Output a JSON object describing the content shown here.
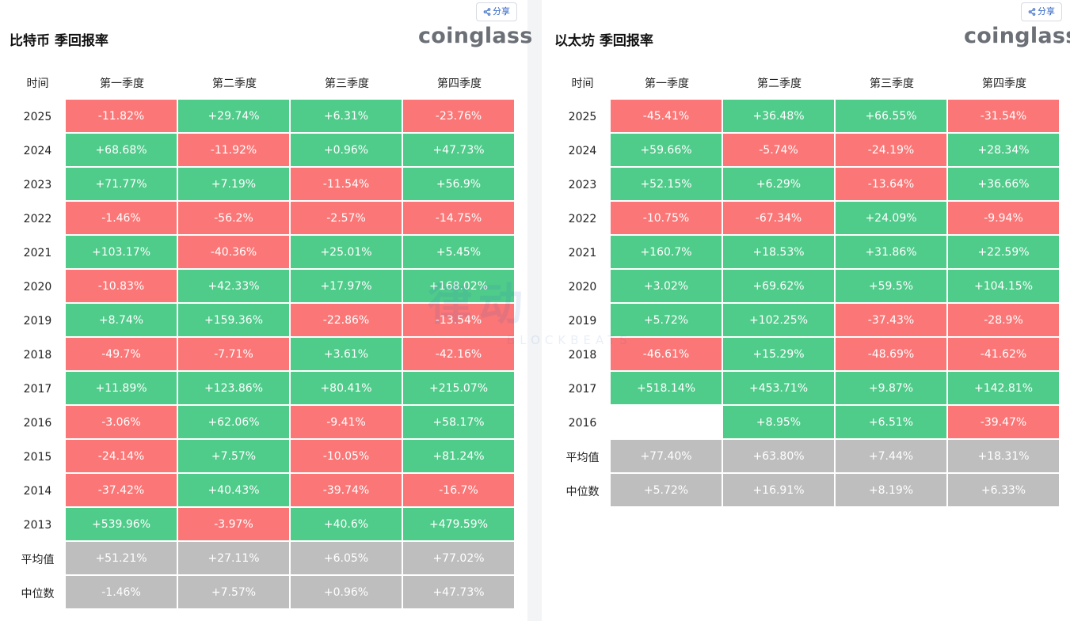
{
  "share_label": "分享",
  "logo_text": "coinglass",
  "header": {
    "time": "时间",
    "quarters": [
      "第一季度",
      "第二季度",
      "第三季度",
      "第四季度"
    ]
  },
  "watermark": {
    "cn": "律动",
    "en": "BLOCKBEATS"
  },
  "colors": {
    "positive": "#4fcb8a",
    "negative": "#fb7676",
    "stat": "#bebebe"
  },
  "btc": {
    "title": "比特币 季回报率",
    "rows": [
      {
        "label": "2025",
        "values": [
          "-11.82%",
          "+29.74%",
          "+6.31%",
          "-23.76%"
        ]
      },
      {
        "label": "2024",
        "values": [
          "+68.68%",
          "-11.92%",
          "+0.96%",
          "+47.73%"
        ]
      },
      {
        "label": "2023",
        "values": [
          "+71.77%",
          "+7.19%",
          "-11.54%",
          "+56.9%"
        ]
      },
      {
        "label": "2022",
        "values": [
          "-1.46%",
          "-56.2%",
          "-2.57%",
          "-14.75%"
        ]
      },
      {
        "label": "2021",
        "values": [
          "+103.17%",
          "-40.36%",
          "+25.01%",
          "+5.45%"
        ]
      },
      {
        "label": "2020",
        "values": [
          "-10.83%",
          "+42.33%",
          "+17.97%",
          "+168.02%"
        ]
      },
      {
        "label": "2019",
        "values": [
          "+8.74%",
          "+159.36%",
          "-22.86%",
          "-13.54%"
        ]
      },
      {
        "label": "2018",
        "values": [
          "-49.7%",
          "-7.71%",
          "+3.61%",
          "-42.16%"
        ]
      },
      {
        "label": "2017",
        "values": [
          "+11.89%",
          "+123.86%",
          "+80.41%",
          "+215.07%"
        ]
      },
      {
        "label": "2016",
        "values": [
          "-3.06%",
          "+62.06%",
          "-9.41%",
          "+58.17%"
        ]
      },
      {
        "label": "2015",
        "values": [
          "-24.14%",
          "+7.57%",
          "-10.05%",
          "+81.24%"
        ]
      },
      {
        "label": "2014",
        "values": [
          "-37.42%",
          "+40.43%",
          "-39.74%",
          "-16.7%"
        ]
      },
      {
        "label": "2013",
        "values": [
          "+539.96%",
          "-3.97%",
          "+40.6%",
          "+479.59%"
        ]
      }
    ],
    "stats": [
      {
        "label": "平均值",
        "values": [
          "+51.21%",
          "+27.11%",
          "+6.05%",
          "+77.02%"
        ]
      },
      {
        "label": "中位数",
        "values": [
          "-1.46%",
          "+7.57%",
          "+0.96%",
          "+47.73%"
        ]
      }
    ]
  },
  "eth": {
    "title": "以太坊 季回报率",
    "rows": [
      {
        "label": "2025",
        "values": [
          "-45.41%",
          "+36.48%",
          "+66.55%",
          "-31.54%"
        ]
      },
      {
        "label": "2024",
        "values": [
          "+59.66%",
          "-5.74%",
          "-24.19%",
          "+28.34%"
        ]
      },
      {
        "label": "2023",
        "values": [
          "+52.15%",
          "+6.29%",
          "-13.64%",
          "+36.66%"
        ]
      },
      {
        "label": "2022",
        "values": [
          "-10.75%",
          "-67.34%",
          "+24.09%",
          "-9.94%"
        ]
      },
      {
        "label": "2021",
        "values": [
          "+160.7%",
          "+18.53%",
          "+31.86%",
          "+22.59%"
        ]
      },
      {
        "label": "2020",
        "values": [
          "+3.02%",
          "+69.62%",
          "+59.5%",
          "+104.15%"
        ]
      },
      {
        "label": "2019",
        "values": [
          "+5.72%",
          "+102.25%",
          "-37.43%",
          "-28.9%"
        ]
      },
      {
        "label": "2018",
        "values": [
          "-46.61%",
          "+15.29%",
          "-48.69%",
          "-41.62%"
        ]
      },
      {
        "label": "2017",
        "values": [
          "+518.14%",
          "+453.71%",
          "+9.87%",
          "+142.81%"
        ]
      },
      {
        "label": "2016",
        "values": [
          "",
          "+8.95%",
          "+6.51%",
          "-39.47%"
        ]
      }
    ],
    "stats": [
      {
        "label": "平均值",
        "values": [
          "+77.40%",
          "+63.80%",
          "+7.44%",
          "+18.31%"
        ]
      },
      {
        "label": "中位数",
        "values": [
          "+5.72%",
          "+16.91%",
          "+8.19%",
          "+6.33%"
        ]
      }
    ]
  }
}
